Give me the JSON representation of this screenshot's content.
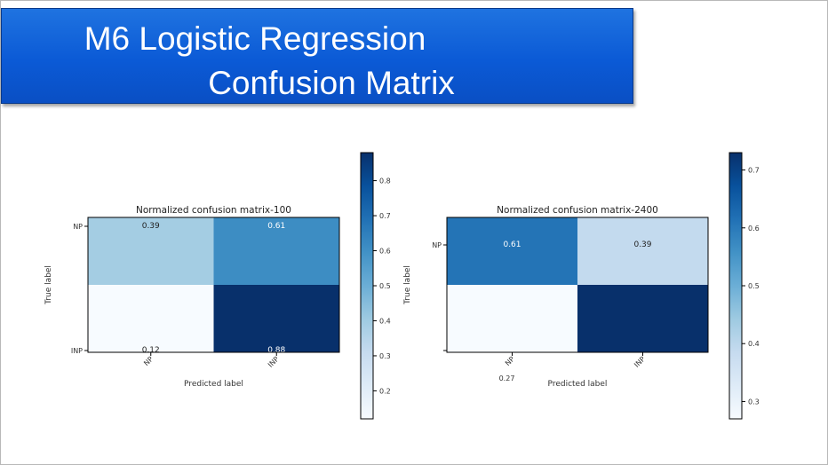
{
  "slide": {
    "title_line1": "M6 Logistic Regression",
    "title_line2": "Confusion Matrix"
  },
  "colors": {
    "banner": "#0b5ad6",
    "cmap": "Blues"
  },
  "chart_data": [
    {
      "type": "heatmap",
      "title": "Normalized confusion matrix-100",
      "xlabel": "Predicted label",
      "ylabel": "True label",
      "x_ticklabels": [
        "NP",
        "INP"
      ],
      "y_ticklabels": [
        "NP",
        "INP"
      ],
      "matrix": [
        [
          0.39,
          0.61
        ],
        [
          0.12,
          0.88
        ]
      ],
      "cell_labels": [
        [
          "0.39",
          "0.61"
        ],
        [
          "0.12",
          "0.88"
        ]
      ],
      "colorbar": {
        "range": [
          0.12,
          0.88
        ],
        "ticks": [
          "0.2",
          "0.3",
          "0.4",
          "0.5",
          "0.6",
          "0.7",
          "0.8"
        ]
      }
    },
    {
      "type": "heatmap",
      "title": "Normalized confusion matrix-2400",
      "xlabel": "Predicted label",
      "ylabel": "True label",
      "x_ticklabels": [
        "NP",
        "INP"
      ],
      "y_ticklabels": [
        "NP",
        ""
      ],
      "matrix": [
        [
          0.61,
          0.39
        ],
        [
          0.27,
          0.73
        ]
      ],
      "cell_labels": [
        [
          "0.61",
          "0.39"
        ],
        [
          "",
          ""
        ]
      ],
      "stray_labels": [
        "0.27"
      ],
      "colorbar": {
        "range": [
          0.27,
          0.73
        ],
        "ticks": [
          "0.3",
          "0.4",
          "0.5",
          "0.6",
          "0.7"
        ]
      }
    }
  ]
}
